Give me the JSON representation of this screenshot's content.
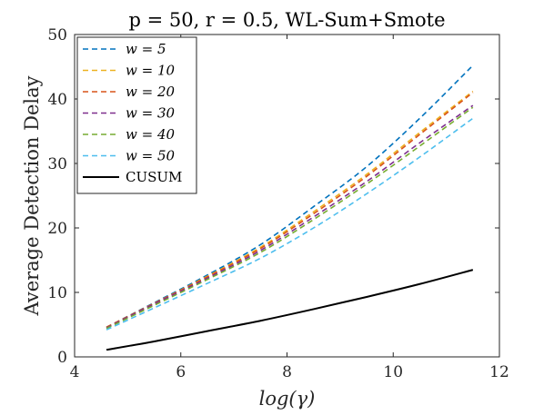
{
  "chart_data": {
    "type": "line",
    "title": "p = 50, r = 0.5, WL-Sum+Smote",
    "xlabel": "log(γ)",
    "ylabel": "Average Detection Delay",
    "xlim": [
      4,
      12
    ],
    "ylim": [
      0,
      50
    ],
    "xticks": [
      4,
      6,
      8,
      10,
      12
    ],
    "yticks": [
      0,
      10,
      20,
      30,
      40,
      50
    ],
    "legend_position": "top-left",
    "series": [
      {
        "name": "w = 5",
        "color": "#0072BD",
        "dash": "dashed",
        "x": [
          4.6,
          5.5,
          6.5,
          7.5,
          8.5,
          9.5,
          10.5,
          11.5
        ],
        "values": [
          4.6,
          8.4,
          12.7,
          17.4,
          23.3,
          29.5,
          37.0,
          45.2
        ]
      },
      {
        "name": "w = 10",
        "color": "#EDB120",
        "dash": "dashed",
        "x": [
          4.6,
          5.5,
          6.5,
          7.5,
          8.5,
          9.5,
          10.5,
          11.5
        ],
        "values": [
          4.6,
          8.3,
          12.5,
          17.0,
          22.5,
          28.3,
          34.8,
          41.2
        ]
      },
      {
        "name": "w = 20",
        "color": "#D95319",
        "dash": "dashed",
        "x": [
          4.6,
          5.5,
          6.5,
          7.5,
          8.5,
          9.5,
          10.5,
          11.5
        ],
        "values": [
          4.6,
          8.3,
          12.4,
          16.8,
          22.2,
          28.0,
          34.5,
          41.0
        ]
      },
      {
        "name": "w = 30",
        "color": "#7E2F8E",
        "dash": "dashed",
        "x": [
          4.6,
          5.5,
          6.5,
          7.5,
          8.5,
          9.5,
          10.5,
          11.5
        ],
        "values": [
          4.5,
          8.2,
          12.2,
          16.5,
          21.7,
          27.2,
          33.2,
          39.0
        ]
      },
      {
        "name": "w = 40",
        "color": "#77AC30",
        "dash": "dashed",
        "x": [
          4.6,
          5.5,
          6.5,
          7.5,
          8.5,
          9.5,
          10.5,
          11.5
        ],
        "values": [
          4.4,
          8.0,
          12.0,
          16.2,
          21.3,
          26.8,
          32.7,
          38.7
        ]
      },
      {
        "name": "w = 50",
        "color": "#4DBEEE",
        "dash": "dashed",
        "x": [
          4.6,
          5.5,
          6.5,
          7.5,
          8.5,
          9.5,
          10.5,
          11.5
        ],
        "values": [
          4.2,
          7.6,
          11.4,
          15.3,
          20.0,
          25.3,
          31.0,
          37.0
        ]
      },
      {
        "name": "CUSUM",
        "color": "#000000",
        "dash": "solid",
        "x": [
          4.6,
          5.5,
          6.5,
          7.5,
          8.5,
          9.5,
          10.5,
          11.5
        ],
        "values": [
          1.1,
          2.4,
          4.0,
          5.6,
          7.4,
          9.3,
          11.3,
          13.5
        ]
      }
    ]
  }
}
